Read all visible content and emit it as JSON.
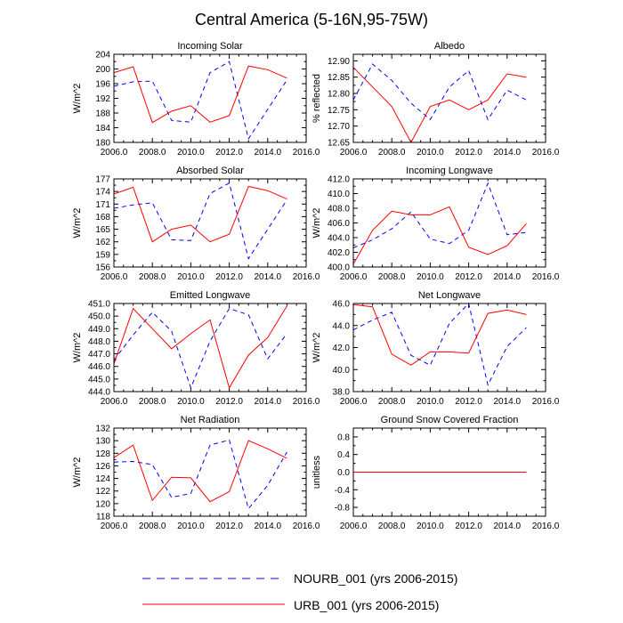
{
  "title": "Central America (5-16N,95-75W)",
  "legend": [
    {
      "label": "NOURB_001 (yrs 2006-2015)",
      "color": "#0000ff",
      "style": "dashed"
    },
    {
      "label": "URB_001 (yrs 2006-2015)",
      "color": "#ff0000",
      "style": "solid"
    }
  ],
  "chart_data": [
    {
      "type": "line",
      "title": "Incoming Solar",
      "ylabel": "W/m^2",
      "xlim": [
        2006,
        2016
      ],
      "ylim": [
        180,
        204
      ],
      "xticks": [
        2006,
        2008,
        2010,
        2012,
        2014,
        2016
      ],
      "xtick_labels": [
        "2006.0",
        "2008.0",
        "2010.0",
        "2012.0",
        "2014.0",
        "2016.0"
      ],
      "yticks": [
        180,
        184,
        188,
        192,
        196,
        200,
        204
      ],
      "ytick_labels": [
        "180",
        "184",
        "188",
        "192",
        "196",
        "200",
        "204"
      ],
      "x": [
        2006,
        2007,
        2008,
        2009,
        2010,
        2011,
        2012,
        2013,
        2014,
        2015
      ],
      "series": [
        {
          "name": "NOURB_001",
          "values": [
            195.3,
            196.5,
            196.7,
            186.0,
            185.5,
            199.0,
            202.0,
            181.0,
            189.0,
            197.0
          ]
        },
        {
          "name": "URB_001",
          "values": [
            199.0,
            200.6,
            185.4,
            188.5,
            190.0,
            185.5,
            187.3,
            200.8,
            199.8,
            197.5
          ]
        }
      ]
    },
    {
      "type": "line",
      "title": "Albedo",
      "ylabel": "% reflected",
      "xlim": [
        2006,
        2016
      ],
      "ylim": [
        12.65,
        12.92
      ],
      "xticks": [
        2006,
        2008,
        2010,
        2012,
        2014,
        2016
      ],
      "xtick_labels": [
        "2006.0",
        "2008.0",
        "2010.0",
        "2012.0",
        "2014.0",
        "2016.0"
      ],
      "yticks": [
        12.65,
        12.7,
        12.75,
        12.8,
        12.85,
        12.9
      ],
      "ytick_labels": [
        "12.65",
        "12.70",
        "12.75",
        "12.80",
        "12.85",
        "12.90"
      ],
      "x": [
        2006,
        2007,
        2008,
        2009,
        2010,
        2011,
        2012,
        2013,
        2014,
        2015
      ],
      "series": [
        {
          "name": "NOURB_001",
          "values": [
            12.78,
            12.89,
            12.84,
            12.77,
            12.72,
            12.82,
            12.87,
            12.72,
            12.81,
            12.78
          ]
        },
        {
          "name": "URB_001",
          "values": [
            12.88,
            12.82,
            12.76,
            12.65,
            12.76,
            12.78,
            12.75,
            12.78,
            12.86,
            12.85
          ]
        }
      ]
    },
    {
      "type": "line",
      "title": "Absorbed Solar",
      "ylabel": "W/m^2",
      "xlim": [
        2006,
        2016
      ],
      "ylim": [
        156,
        177
      ],
      "xticks": [
        2006,
        2008,
        2010,
        2012,
        2014,
        2016
      ],
      "xtick_labels": [
        "2006.0",
        "2008.0",
        "2010.0",
        "2012.0",
        "2014.0",
        "2016.0"
      ],
      "yticks": [
        156,
        159,
        162,
        165,
        168,
        171,
        174,
        177
      ],
      "ytick_labels": [
        "156",
        "159",
        "162",
        "165",
        "168",
        "171",
        "174",
        "177"
      ],
      "x": [
        2006,
        2007,
        2008,
        2009,
        2010,
        2011,
        2012,
        2013,
        2014,
        2015
      ],
      "series": [
        {
          "name": "NOURB_001",
          "values": [
            170.0,
            170.8,
            171.3,
            162.5,
            162.3,
            173.5,
            176.0,
            158.0,
            165.0,
            172.0
          ]
        },
        {
          "name": "URB_001",
          "values": [
            173.4,
            175.0,
            162.0,
            165.0,
            166.0,
            162.0,
            163.8,
            175.2,
            174.2,
            172.2
          ]
        }
      ]
    },
    {
      "type": "line",
      "title": "Incoming Longwave",
      "ylabel": "W/m^2",
      "xlim": [
        2006,
        2016
      ],
      "ylim": [
        400,
        412
      ],
      "xticks": [
        2006,
        2008,
        2010,
        2012,
        2014,
        2016
      ],
      "xtick_labels": [
        "2006.0",
        "2008.0",
        "2010.0",
        "2012.0",
        "2014.0",
        "2016.0"
      ],
      "yticks": [
        400,
        402,
        404,
        406,
        408,
        410,
        412
      ],
      "ytick_labels": [
        "400.0",
        "402.0",
        "404.0",
        "406.0",
        "408.0",
        "410.0",
        "412.0"
      ],
      "x": [
        2006,
        2007,
        2008,
        2009,
        2010,
        2011,
        2012,
        2013,
        2014,
        2015
      ],
      "series": [
        {
          "name": "NOURB_001",
          "values": [
            402.6,
            403.7,
            405.2,
            407.5,
            403.8,
            403.2,
            405.0,
            411.4,
            404.4,
            404.7
          ]
        },
        {
          "name": "URB_001",
          "values": [
            400.4,
            405.0,
            407.6,
            407.1,
            407.1,
            408.2,
            402.7,
            401.7,
            402.9,
            405.9
          ]
        }
      ]
    },
    {
      "type": "line",
      "title": "Emitted Longwave",
      "ylabel": "W/m^2",
      "xlim": [
        2006,
        2016
      ],
      "ylim": [
        444,
        451
      ],
      "xticks": [
        2006,
        2008,
        2010,
        2012,
        2014,
        2016
      ],
      "xtick_labels": [
        "2006.0",
        "2008.0",
        "2010.0",
        "2012.0",
        "2014.0",
        "2016.0"
      ],
      "yticks": [
        444,
        445,
        446,
        447,
        448,
        449,
        450,
        451
      ],
      "ytick_labels": [
        "444.0",
        "445.0",
        "446.0",
        "447.0",
        "448.0",
        "449.0",
        "450.0",
        "451.0"
      ],
      "x": [
        2006,
        2007,
        2008,
        2009,
        2010,
        2011,
        2012,
        2013,
        2014,
        2015
      ],
      "series": [
        {
          "name": "NOURB_001",
          "values": [
            446.5,
            448.5,
            450.3,
            448.8,
            444.3,
            448.0,
            450.6,
            450.1,
            446.6,
            448.6
          ]
        },
        {
          "name": "URB_001",
          "values": [
            446.2,
            450.6,
            449.0,
            447.4,
            448.6,
            449.7,
            444.3,
            446.9,
            448.3,
            450.8
          ]
        }
      ]
    },
    {
      "type": "line",
      "title": "Net Longwave",
      "ylabel": "W/m^2",
      "xlim": [
        2006,
        2016
      ],
      "ylim": [
        38,
        46
      ],
      "xticks": [
        2006,
        2008,
        2010,
        2012,
        2014,
        2016
      ],
      "xtick_labels": [
        "2006.0",
        "2008.0",
        "2010.0",
        "2012.0",
        "2014.0",
        "2016.0"
      ],
      "yticks": [
        38,
        40,
        42,
        44,
        46
      ],
      "ytick_labels": [
        "38.0",
        "40.0",
        "42.0",
        "44.0",
        "46.0"
      ],
      "x": [
        2006,
        2007,
        2008,
        2009,
        2010,
        2011,
        2012,
        2013,
        2014,
        2015
      ],
      "series": [
        {
          "name": "NOURB_001",
          "values": [
            43.6,
            44.5,
            45.2,
            41.3,
            40.4,
            44.2,
            46.0,
            38.6,
            42.1,
            43.8
          ]
        },
        {
          "name": "URB_001",
          "values": [
            45.9,
            45.7,
            41.4,
            40.4,
            41.6,
            41.6,
            41.5,
            45.1,
            45.4,
            45.0
          ]
        }
      ]
    },
    {
      "type": "line",
      "title": "Net Radiation",
      "ylabel": "W/m^2",
      "xlim": [
        2006,
        2016
      ],
      "ylim": [
        118,
        132
      ],
      "xticks": [
        2006,
        2008,
        2010,
        2012,
        2014,
        2016
      ],
      "xtick_labels": [
        "2006.0",
        "2008.0",
        "2010.0",
        "2012.0",
        "2014.0",
        "2016.0"
      ],
      "yticks": [
        118,
        120,
        122,
        124,
        126,
        128,
        130,
        132
      ],
      "ytick_labels": [
        "118",
        "120",
        "122",
        "124",
        "126",
        "128",
        "130",
        "132"
      ],
      "x": [
        2006,
        2007,
        2008,
        2009,
        2010,
        2011,
        2012,
        2013,
        2014,
        2015
      ],
      "series": [
        {
          "name": "NOURB_001",
          "values": [
            126.6,
            126.7,
            126.2,
            121.0,
            121.6,
            129.3,
            130.1,
            119.2,
            122.9,
            128.2
          ]
        },
        {
          "name": "URB_001",
          "values": [
            127.3,
            129.3,
            120.5,
            124.2,
            124.1,
            120.3,
            121.9,
            130.0,
            128.7,
            127.2
          ]
        }
      ]
    },
    {
      "type": "line",
      "title": "Ground Snow Covered Fraction",
      "ylabel": "unitless",
      "xlim": [
        2006,
        2016
      ],
      "ylim": [
        -1,
        1
      ],
      "xticks": [
        2006,
        2008,
        2010,
        2012,
        2014,
        2016
      ],
      "xtick_labels": [
        "2006.0",
        "2008.0",
        "2010.0",
        "2012.0",
        "2014.0",
        "2016.0"
      ],
      "yticks": [
        -0.8,
        -0.4,
        0,
        0.4,
        0.8
      ],
      "ytick_labels": [
        "-0.8",
        "-0.4",
        "0.0",
        "0.4",
        "0.8"
      ],
      "x": [
        2006,
        2007,
        2008,
        2009,
        2010,
        2011,
        2012,
        2013,
        2014,
        2015
      ],
      "series": [
        {
          "name": "NOURB_001",
          "values": [
            0,
            0,
            0,
            0,
            0,
            0,
            0,
            0,
            0,
            0
          ]
        },
        {
          "name": "URB_001",
          "values": [
            0,
            0,
            0,
            0,
            0,
            0,
            0,
            0,
            0,
            0
          ]
        }
      ]
    }
  ]
}
